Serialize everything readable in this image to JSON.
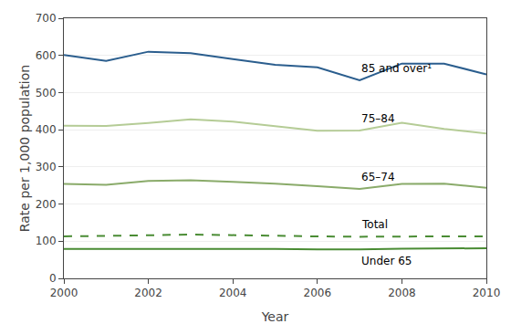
{
  "chart_data": {
    "type": "line",
    "x": [
      2000,
      2001,
      2002,
      2003,
      2004,
      2005,
      2006,
      2007,
      2008,
      2009,
      2010
    ],
    "series": [
      {
        "name": "85 and over¹",
        "color": "#2b5e8e",
        "line_style": "solid",
        "values": [
          601,
          585,
          610,
          606,
          590,
          575,
          568,
          533,
          578,
          578,
          549
        ]
      },
      {
        "name": "75–84",
        "color": "#b5cc96",
        "line_style": "solid",
        "values": [
          411,
          410,
          418,
          428,
          422,
          410,
          397,
          398,
          419,
          402,
          390
        ]
      },
      {
        "name": "65–74",
        "color": "#8aab6a",
        "line_style": "solid",
        "values": [
          254,
          252,
          262,
          264,
          260,
          255,
          248,
          241,
          254,
          255,
          244
        ]
      },
      {
        "name": "Total",
        "color": "#4a8c34",
        "line_style": "dashed",
        "values": [
          113,
          114,
          116,
          118,
          116,
          115,
          113,
          112,
          113,
          113,
          113
        ]
      },
      {
        "name": "Under 65",
        "color": "#4a8c34",
        "line_style": "solid",
        "values": [
          79,
          79,
          80,
          80,
          80,
          79,
          78,
          78,
          80,
          80,
          81
        ]
      }
    ],
    "xlabel": "Year",
    "ylabel": "Rate per 1,000 population",
    "xlim": [
      2000,
      2010
    ],
    "xticks": [
      2000,
      2002,
      2004,
      2006,
      2008,
      2010
    ],
    "ylim": [
      0,
      700
    ],
    "yticks": [
      0,
      100,
      200,
      300,
      400,
      500,
      600,
      700
    ],
    "grid": true
  }
}
